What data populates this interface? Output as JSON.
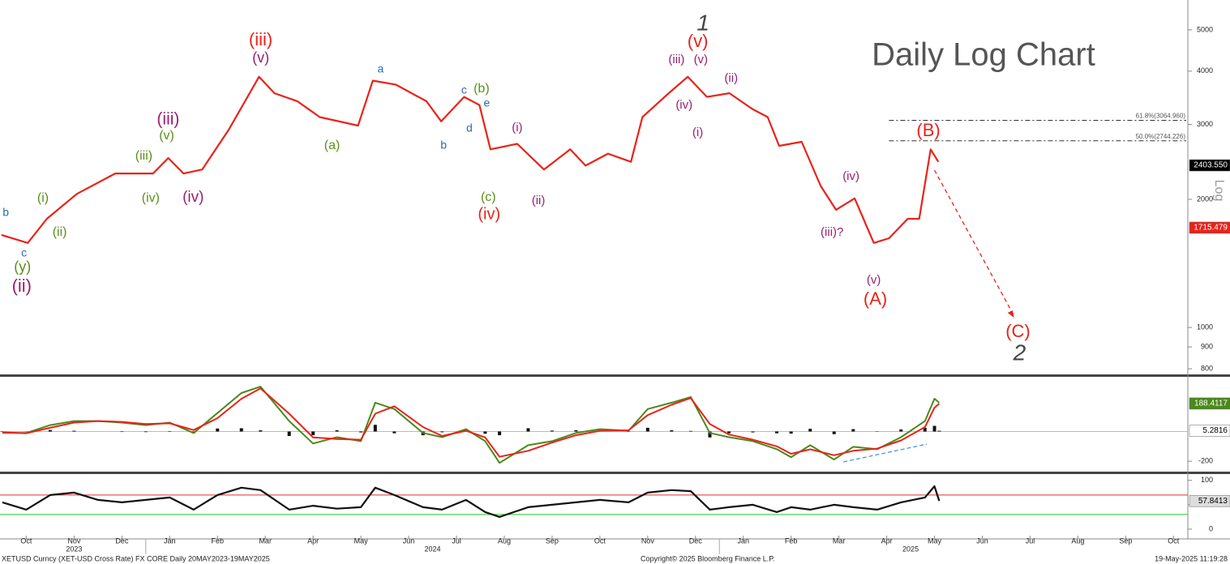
{
  "chart_data": [
    {
      "type": "line",
      "title": "Daily Log Chart",
      "ylabel": "Log",
      "log": true,
      "x": [
        -0.52,
        0.03,
        0.43,
        1.06,
        1.86,
        2.65,
        2.97,
        3.29,
        3.68,
        4.24,
        4.87,
        5.19,
        5.67,
        6.14,
        6.94,
        7.25,
        7.73,
        8.37,
        8.68,
        9.16,
        9.48,
        9.71,
        10.27,
        10.83,
        11.38,
        11.7,
        12.17,
        12.65,
        12.89,
        13.44,
        13.84,
        14.24,
        14.71,
        15.19,
        15.51,
        15.75,
        16.22,
        16.62,
        16.94,
        17.33,
        17.73,
        18.05,
        18.44,
        18.68,
        18.92,
        19.08
      ],
      "series": [
        {
          "color": "#e8231a",
          "values": [
            1650,
            1580,
            1800,
            2060,
            2300,
            2300,
            2500,
            2300,
            2350,
            2920,
            3880,
            3550,
            3400,
            3120,
            2980,
            3800,
            3720,
            3400,
            3050,
            3480,
            3330,
            2620,
            2700,
            2350,
            2620,
            2400,
            2560,
            2450,
            3120,
            3550,
            3880,
            3480,
            3550,
            3260,
            3120,
            2670,
            2730,
            2150,
            1890,
            2010,
            1580,
            1620,
            1800,
            1800,
            2620,
            2450
          ]
        }
      ],
      "xlim": [
        -0.55,
        24.3
      ],
      "ylim": [
        776,
        5877
      ],
      "yticks": [
        800,
        900,
        1000,
        2000,
        3000,
        4000,
        5000
      ],
      "fib_levels": [
        {
          "value": 3064.96,
          "label": "61.8%(3064.960)"
        },
        {
          "value": 2744.226,
          "label": "50.0%(2744.226)"
        }
      ],
      "last_values": [
        {
          "value": 2403.55,
          "label": "2403.550",
          "color": "#000000"
        },
        {
          "value": 1715.479,
          "label": "1715.479",
          "color": "#e8231a"
        }
      ],
      "annotations": [
        {
          "text": "(iii)",
          "color": "#e8231a"
        },
        {
          "text": "(v)",
          "color": "#e8231a"
        },
        {
          "text": "(iv)",
          "color": "#e8231a"
        },
        {
          "text": "(B)",
          "color": "#e8231a"
        },
        {
          "text": "(A)",
          "color": "#e8231a"
        },
        {
          "text": "(C)",
          "color": "#e8231a"
        },
        {
          "text": "1",
          "color": "#444444"
        },
        {
          "text": "2",
          "color": "#444444"
        },
        {
          "text": "(v)",
          "color": "#9c1f6e"
        },
        {
          "text": "(iii)",
          "color": "#9c1f6e"
        },
        {
          "text": "(iv)",
          "color": "#9c1f6e"
        },
        {
          "text": "(ii)",
          "color": "#9c1f6e"
        },
        {
          "text": "(iii)",
          "color": "#9c1f6e"
        },
        {
          "text": "(v)",
          "color": "#9c1f6e"
        },
        {
          "text": "(iv)",
          "color": "#9c1f6e"
        },
        {
          "text": "(i)",
          "color": "#9c1f6e"
        },
        {
          "text": "(ii)",
          "color": "#9c1f6e"
        },
        {
          "text": "(i)",
          "color": "#9c1f6e"
        },
        {
          "text": "(ii)",
          "color": "#9c1f6e"
        },
        {
          "text": "(iv)",
          "color": "#9c1f6e"
        },
        {
          "text": "(iii)?",
          "color": "#9c1f6e"
        },
        {
          "text": "(v)",
          "color": "#9c1f6e"
        },
        {
          "text": "(i)",
          "color": "#5b8f1a"
        },
        {
          "text": "(ii)",
          "color": "#5b8f1a"
        },
        {
          "text": "(y)",
          "color": "#5b8f1a"
        },
        {
          "text": "(iii)",
          "color": "#5b8f1a"
        },
        {
          "text": "(iv)",
          "color": "#5b8f1a"
        },
        {
          "text": "(v)",
          "color": "#5b8f1a"
        },
        {
          "text": "(a)",
          "color": "#5b8f1a"
        },
        {
          "text": "(b)",
          "color": "#5b8f1a"
        },
        {
          "text": "(c)",
          "color": "#5b8f1a"
        },
        {
          "text": "b",
          "color": "#2a6cb0"
        },
        {
          "text": "c",
          "color": "#2a6cb0"
        },
        {
          "text": "a",
          "color": "#2a6cb0"
        },
        {
          "text": "b",
          "color": "#2a6cb0"
        },
        {
          "text": "c",
          "color": "#2a6cb0"
        },
        {
          "text": "d",
          "color": "#2a6cb0"
        },
        {
          "text": "e",
          "color": "#2a6cb0"
        }
      ]
    },
    {
      "type": "line",
      "x": [
        -0.5,
        0,
        0.5,
        1,
        1.5,
        2,
        2.5,
        3,
        3.5,
        4,
        4.5,
        4.9,
        5.5,
        6,
        6.5,
        7,
        7.3,
        7.7,
        8.3,
        8.7,
        9.2,
        9.6,
        9.9,
        10.5,
        11,
        11.5,
        12,
        12.6,
        13,
        13.5,
        13.9,
        14.3,
        14.7,
        15.2,
        15.7,
        16,
        16.4,
        16.9,
        17.3,
        17.8,
        18.3,
        18.8,
        19,
        19.1
      ],
      "series": [
        {
          "color": "#4a8a1a",
          "values": [
            -10,
            -10,
            43,
            70,
            70,
            60,
            43,
            60,
            -10,
            124,
            259,
            302,
            70,
            -81,
            -38,
            -65,
            194,
            151,
            -10,
            -38,
            16,
            -65,
            -211,
            -92,
            -65,
            -10,
            16,
            5,
            151,
            194,
            232,
            -10,
            -38,
            -65,
            -119,
            -173,
            -92,
            -189,
            -103,
            -119,
            -38,
            70,
            221,
            194
          ]
        },
        {
          "color": "#e8231a",
          "values": [
            -5,
            -12,
            25,
            60,
            70,
            65,
            50,
            55,
            10,
            90,
            220,
            290,
            120,
            -40,
            -50,
            -55,
            120,
            170,
            30,
            -30,
            5,
            -40,
            -170,
            -130,
            -75,
            -25,
            5,
            8,
            110,
            180,
            225,
            50,
            -20,
            -55,
            -100,
            -150,
            -120,
            -160,
            -130,
            -115,
            -60,
            30,
            160,
            188
          ]
        }
      ],
      "histogram": {
        "color": "#111111",
        "values": [
          -3,
          1,
          10,
          5,
          0,
          -3,
          -4,
          3,
          -12,
          20,
          22,
          8,
          -30,
          -25,
          8,
          -6,
          45,
          -12,
          -25,
          -5,
          6,
          -15,
          -25,
          22,
          6,
          9,
          6,
          -2,
          25,
          8,
          4,
          -40,
          -12,
          -6,
          -12,
          -14,
          18,
          -18,
          16,
          -2,
          14,
          24,
          38,
          5
        ]
      },
      "xlim": [
        -0.55,
        24.3
      ],
      "ylim": [
        -270,
        368
      ],
      "yticks": [
        -200
      ],
      "last_values": [
        {
          "value": 188.4117,
          "label": "188.4117",
          "color": "#4a8a1a"
        },
        {
          "value": 5.2816,
          "label": "5.2816",
          "color": "#ffffff"
        }
      ]
    },
    {
      "type": "line",
      "x": [
        -0.5,
        0,
        0.5,
        1,
        1.5,
        2,
        2.5,
        3,
        3.5,
        4,
        4.5,
        4.9,
        5.5,
        6,
        6.5,
        7,
        7.3,
        7.7,
        8.3,
        8.7,
        9.2,
        9.6,
        9.9,
        10.5,
        11,
        11.5,
        12,
        12.6,
        13,
        13.5,
        13.9,
        14.3,
        14.7,
        15.2,
        15.7,
        16,
        16.4,
        16.9,
        17.3,
        17.8,
        18.3,
        18.8,
        19,
        19.1
      ],
      "series": [
        {
          "color": "#111111",
          "values": [
            55,
            40,
            70,
            75,
            60,
            55,
            60,
            65,
            40,
            70,
            85,
            80,
            40,
            48,
            42,
            45,
            85,
            70,
            45,
            40,
            60,
            35,
            25,
            45,
            50,
            55,
            60,
            55,
            75,
            80,
            78,
            40,
            45,
            50,
            35,
            45,
            40,
            50,
            45,
            40,
            55,
            65,
            88,
            58
          ]
        }
      ],
      "levels": [
        {
          "value": 70,
          "color": "#e03030"
        },
        {
          "value": 30,
          "color": "#22cc22"
        }
      ],
      "xlim": [
        -0.55,
        24.3
      ],
      "ylim": [
        -20,
        113
      ],
      "yticks": [
        0,
        50,
        100
      ],
      "xticks": [
        {
          "value": 0,
          "label": "Oct"
        },
        {
          "value": 1,
          "label": "Nov"
        },
        {
          "value": 2,
          "label": "Dec"
        },
        {
          "value": 3,
          "label": "Jan"
        },
        {
          "value": 4,
          "label": "Feb"
        },
        {
          "value": 5,
          "label": "Mar"
        },
        {
          "value": 6,
          "label": "Apr"
        },
        {
          "value": 7,
          "label": "May"
        },
        {
          "value": 8,
          "label": "Jun"
        },
        {
          "value": 9,
          "label": "Jul"
        },
        {
          "value": 10,
          "label": "Aug"
        },
        {
          "value": 11,
          "label": "Sep"
        },
        {
          "value": 12,
          "label": "Oct"
        },
        {
          "value": 13,
          "label": "Nov"
        },
        {
          "value": 14,
          "label": "Dec"
        },
        {
          "value": 15,
          "label": "Jan"
        },
        {
          "value": 16,
          "label": "Feb"
        },
        {
          "value": 17,
          "label": "Mar"
        },
        {
          "value": 18,
          "label": "Apr"
        },
        {
          "value": 19,
          "label": "May"
        },
        {
          "value": 20,
          "label": "Jun"
        },
        {
          "value": 21,
          "label": "Jul"
        },
        {
          "value": 22,
          "label": "Aug"
        },
        {
          "value": 23,
          "label": "Sep"
        },
        {
          "value": 24,
          "label": "Oct"
        }
      ],
      "x_years": [
        "2023",
        "2024",
        "2025"
      ],
      "last_values": [
        {
          "value": 57.8413,
          "label": "57.8413",
          "color": "#dddddd"
        }
      ]
    }
  ],
  "footer": {
    "left": "XETUSD Curncy (XET-USD Cross Rate) FX CORE  Daily 20MAY2023-19MAY2025",
    "center": "Copyright© 2025 Bloomberg Finance L.P.",
    "right": "19-May-2025 11:19:28"
  }
}
